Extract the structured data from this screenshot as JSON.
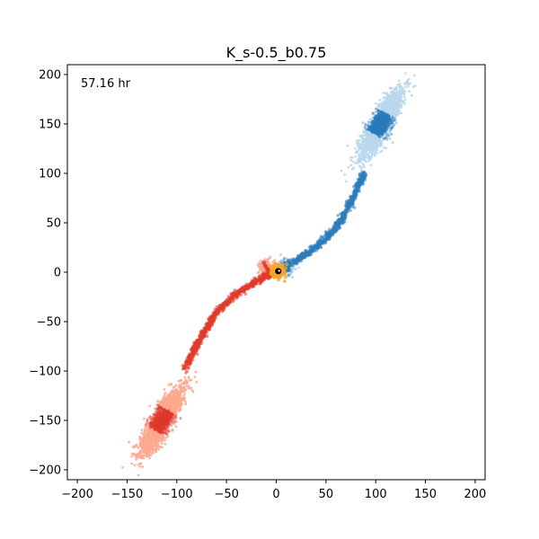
{
  "chart_data": {
    "type": "scatter",
    "title": "K_s-0.5_b0.75",
    "annotation": "57.16 hr",
    "xlabel": "",
    "ylabel": "",
    "xlim": [
      -210,
      210
    ],
    "ylim": [
      -210,
      210
    ],
    "xticks": [
      -200,
      -150,
      -100,
      -50,
      0,
      50,
      100,
      150,
      200
    ],
    "yticks": [
      -200,
      -150,
      -100,
      -50,
      0,
      50,
      100,
      150,
      200
    ],
    "grid": false,
    "series": [
      {
        "color_core": "#2b7bba",
        "color_halo": "#b9d7ec",
        "clusters": [
          {
            "cx": 105,
            "cy": 150,
            "spread_major": 40,
            "spread_minor": 9,
            "angle_deg": 60,
            "count": 2200
          },
          {
            "cx": 10,
            "cy": 5,
            "spread_major": 10,
            "spread_minor": 7,
            "angle_deg": 30,
            "count": 250
          }
        ],
        "stream": [
          [
            0,
            0
          ],
          [
            20,
            12
          ],
          [
            40,
            25
          ],
          [
            60,
            45
          ],
          [
            75,
            70
          ],
          [
            88,
            100
          ]
        ]
      },
      {
        "color_core": "#e03a2a",
        "color_halo": "#fca98e",
        "clusters": [
          {
            "cx": -115,
            "cy": -150,
            "spread_major": 40,
            "spread_minor": 9,
            "angle_deg": 60,
            "count": 2200
          },
          {
            "cx": -10,
            "cy": 5,
            "spread_major": 8,
            "spread_minor": 6,
            "angle_deg": 30,
            "count": 220
          }
        ],
        "stream": [
          [
            0,
            0
          ],
          [
            -18,
            -8
          ],
          [
            -40,
            -22
          ],
          [
            -60,
            -40
          ],
          [
            -78,
            -70
          ],
          [
            -92,
            -98
          ]
        ]
      }
    ],
    "center": {
      "x": 2,
      "y": 1,
      "color": "#f5a623",
      "core_color": "#000000"
    }
  }
}
